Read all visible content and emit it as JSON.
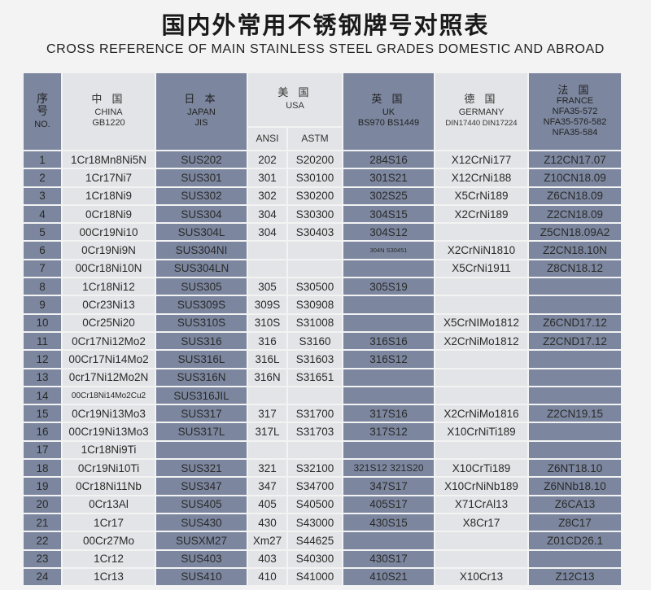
{
  "title": "国内外常用不锈钢牌号对照表",
  "subtitle": "CROSS REFERENCE OF MAIN STAINLESS STEEL GRADES DOMESTIC  AND ABROAD",
  "headers": {
    "no": {
      "cn": "序号",
      "en": "NO."
    },
    "china": {
      "cn": "中 国",
      "en1": "CHINA",
      "en2": "GB1220"
    },
    "japan": {
      "cn": "日 本",
      "en1": "JAPAN",
      "en2": "JIS"
    },
    "usa": {
      "cn": "美 国",
      "en1": "USA",
      "ansi": "ANSI",
      "astm": "ASTM"
    },
    "uk": {
      "cn": "英 国",
      "en1": "UK",
      "en2": "BS970 BS1449"
    },
    "germany": {
      "cn": "德 国",
      "en1": "GERMANY",
      "en2": "DIN17440 DIN17224"
    },
    "france": {
      "cn": "法 国",
      "en1": "FRANCE",
      "en2": "NFA35-572",
      "en3": "NFA35-576-582",
      "en4": "NFA35-584"
    }
  },
  "colors": {
    "dark_column": "#7c879f",
    "light_column": "#e3e4e7"
  },
  "rows": [
    [
      "1",
      "1Cr18Mn8Ni5N",
      "SUS202",
      "202",
      "S20200",
      "284S16",
      "X12CrNi177",
      "Z12CN17.07"
    ],
    [
      "2",
      "1Cr17Ni7",
      "SUS301",
      "301",
      "S30100",
      "301S21",
      "X12CrNi188",
      "Z10CN18.09"
    ],
    [
      "3",
      "1Cr18Ni9",
      "SUS302",
      "302",
      "S30200",
      "302S25",
      "X5CrNi189",
      "Z6CN18.09"
    ],
    [
      "4",
      "0Cr18Ni9",
      "SUS304",
      "304",
      "S30300",
      "304S15",
      "X2CrNi189",
      "Z2CN18.09"
    ],
    [
      "5",
      "00Cr19Ni10",
      "SUS304L",
      "304",
      "S30403",
      "304S12",
      "",
      "Z5CN18.09A2"
    ],
    [
      "6",
      "0Cr19Ni9N",
      "SUS304NI",
      "",
      "",
      "304N S30451",
      "X2CrNiN1810",
      "Z2CN18.10N"
    ],
    [
      "7",
      "00Cr18Ni10N",
      "SUS304LN",
      "",
      "",
      "",
      "X5CrNi1911",
      "Z8CN18.12"
    ],
    [
      "8",
      "1Cr18Ni12",
      "SUS305",
      "305",
      "S30500",
      "305S19",
      "",
      ""
    ],
    [
      "9",
      "0Cr23Ni13",
      "SUS309S",
      "309S",
      "S30908",
      "",
      "",
      ""
    ],
    [
      "10",
      "0Cr25Ni20",
      "SUS310S",
      "310S",
      "S31008",
      "",
      "X5CrNIMo1812",
      "Z6CND17.12"
    ],
    [
      "11",
      "0Cr17Ni12Mo2",
      "SUS316",
      "316",
      "S3160",
      "316S16",
      "X2CrNiMo1812",
      "Z2CND17.12"
    ],
    [
      "12",
      "00Cr17Ni14Mo2",
      "SUS316L",
      "316L",
      "S31603",
      "316S12",
      "",
      ""
    ],
    [
      "13",
      "0cr17Ni12Mo2N",
      "SUS316N",
      "316N",
      "S31651",
      "",
      "",
      ""
    ],
    [
      "14",
      "00Cr18Ni14Mo2Cu2",
      "SUS316JIL",
      "",
      "",
      "",
      "",
      ""
    ],
    [
      "15",
      "0Cr19Ni13Mo3",
      "SUS317",
      "317",
      "S31700",
      "317S16",
      "X2CrNiMo1816",
      "Z2CN19.15"
    ],
    [
      "16",
      "00Cr19Ni13Mo3",
      "SUS317L",
      "317L",
      "S31703",
      "317S12",
      "X10CrNiTi189",
      ""
    ],
    [
      "17",
      "1Cr18Ni9Ti",
      "",
      "",
      "",
      "",
      "",
      ""
    ],
    [
      "18",
      "0Cr19Ni10Ti",
      "SUS321",
      "321",
      "S32100",
      "321S12  321S20",
      "X10CrTi189",
      "Z6NT18.10"
    ],
    [
      "19",
      "0Cr18Ni11Nb",
      "SUS347",
      "347",
      "S34700",
      "347S17",
      "X10CrNiNb189",
      "Z6NNb18.10"
    ],
    [
      "20",
      "0Cr13Al",
      "SUS405",
      "405",
      "S40500",
      "405S17",
      "X71CrAl13",
      "Z6CA13"
    ],
    [
      "21",
      "1Cr17",
      "SUS430",
      "430",
      "S43000",
      "430S15",
      "X8Cr17",
      "Z8C17"
    ],
    [
      "22",
      "00Cr27Mo",
      "SUSXM27",
      "Xm27",
      "S44625",
      "",
      "",
      "Z01CD26.1"
    ],
    [
      "23",
      "1Cr12",
      "SUS403",
      "403",
      "S40300",
      "430S17",
      "",
      ""
    ],
    [
      "24",
      "1Cr13",
      "SUS410",
      "410",
      "S41000",
      "410S21",
      "X10Cr13",
      "Z12C13"
    ]
  ]
}
